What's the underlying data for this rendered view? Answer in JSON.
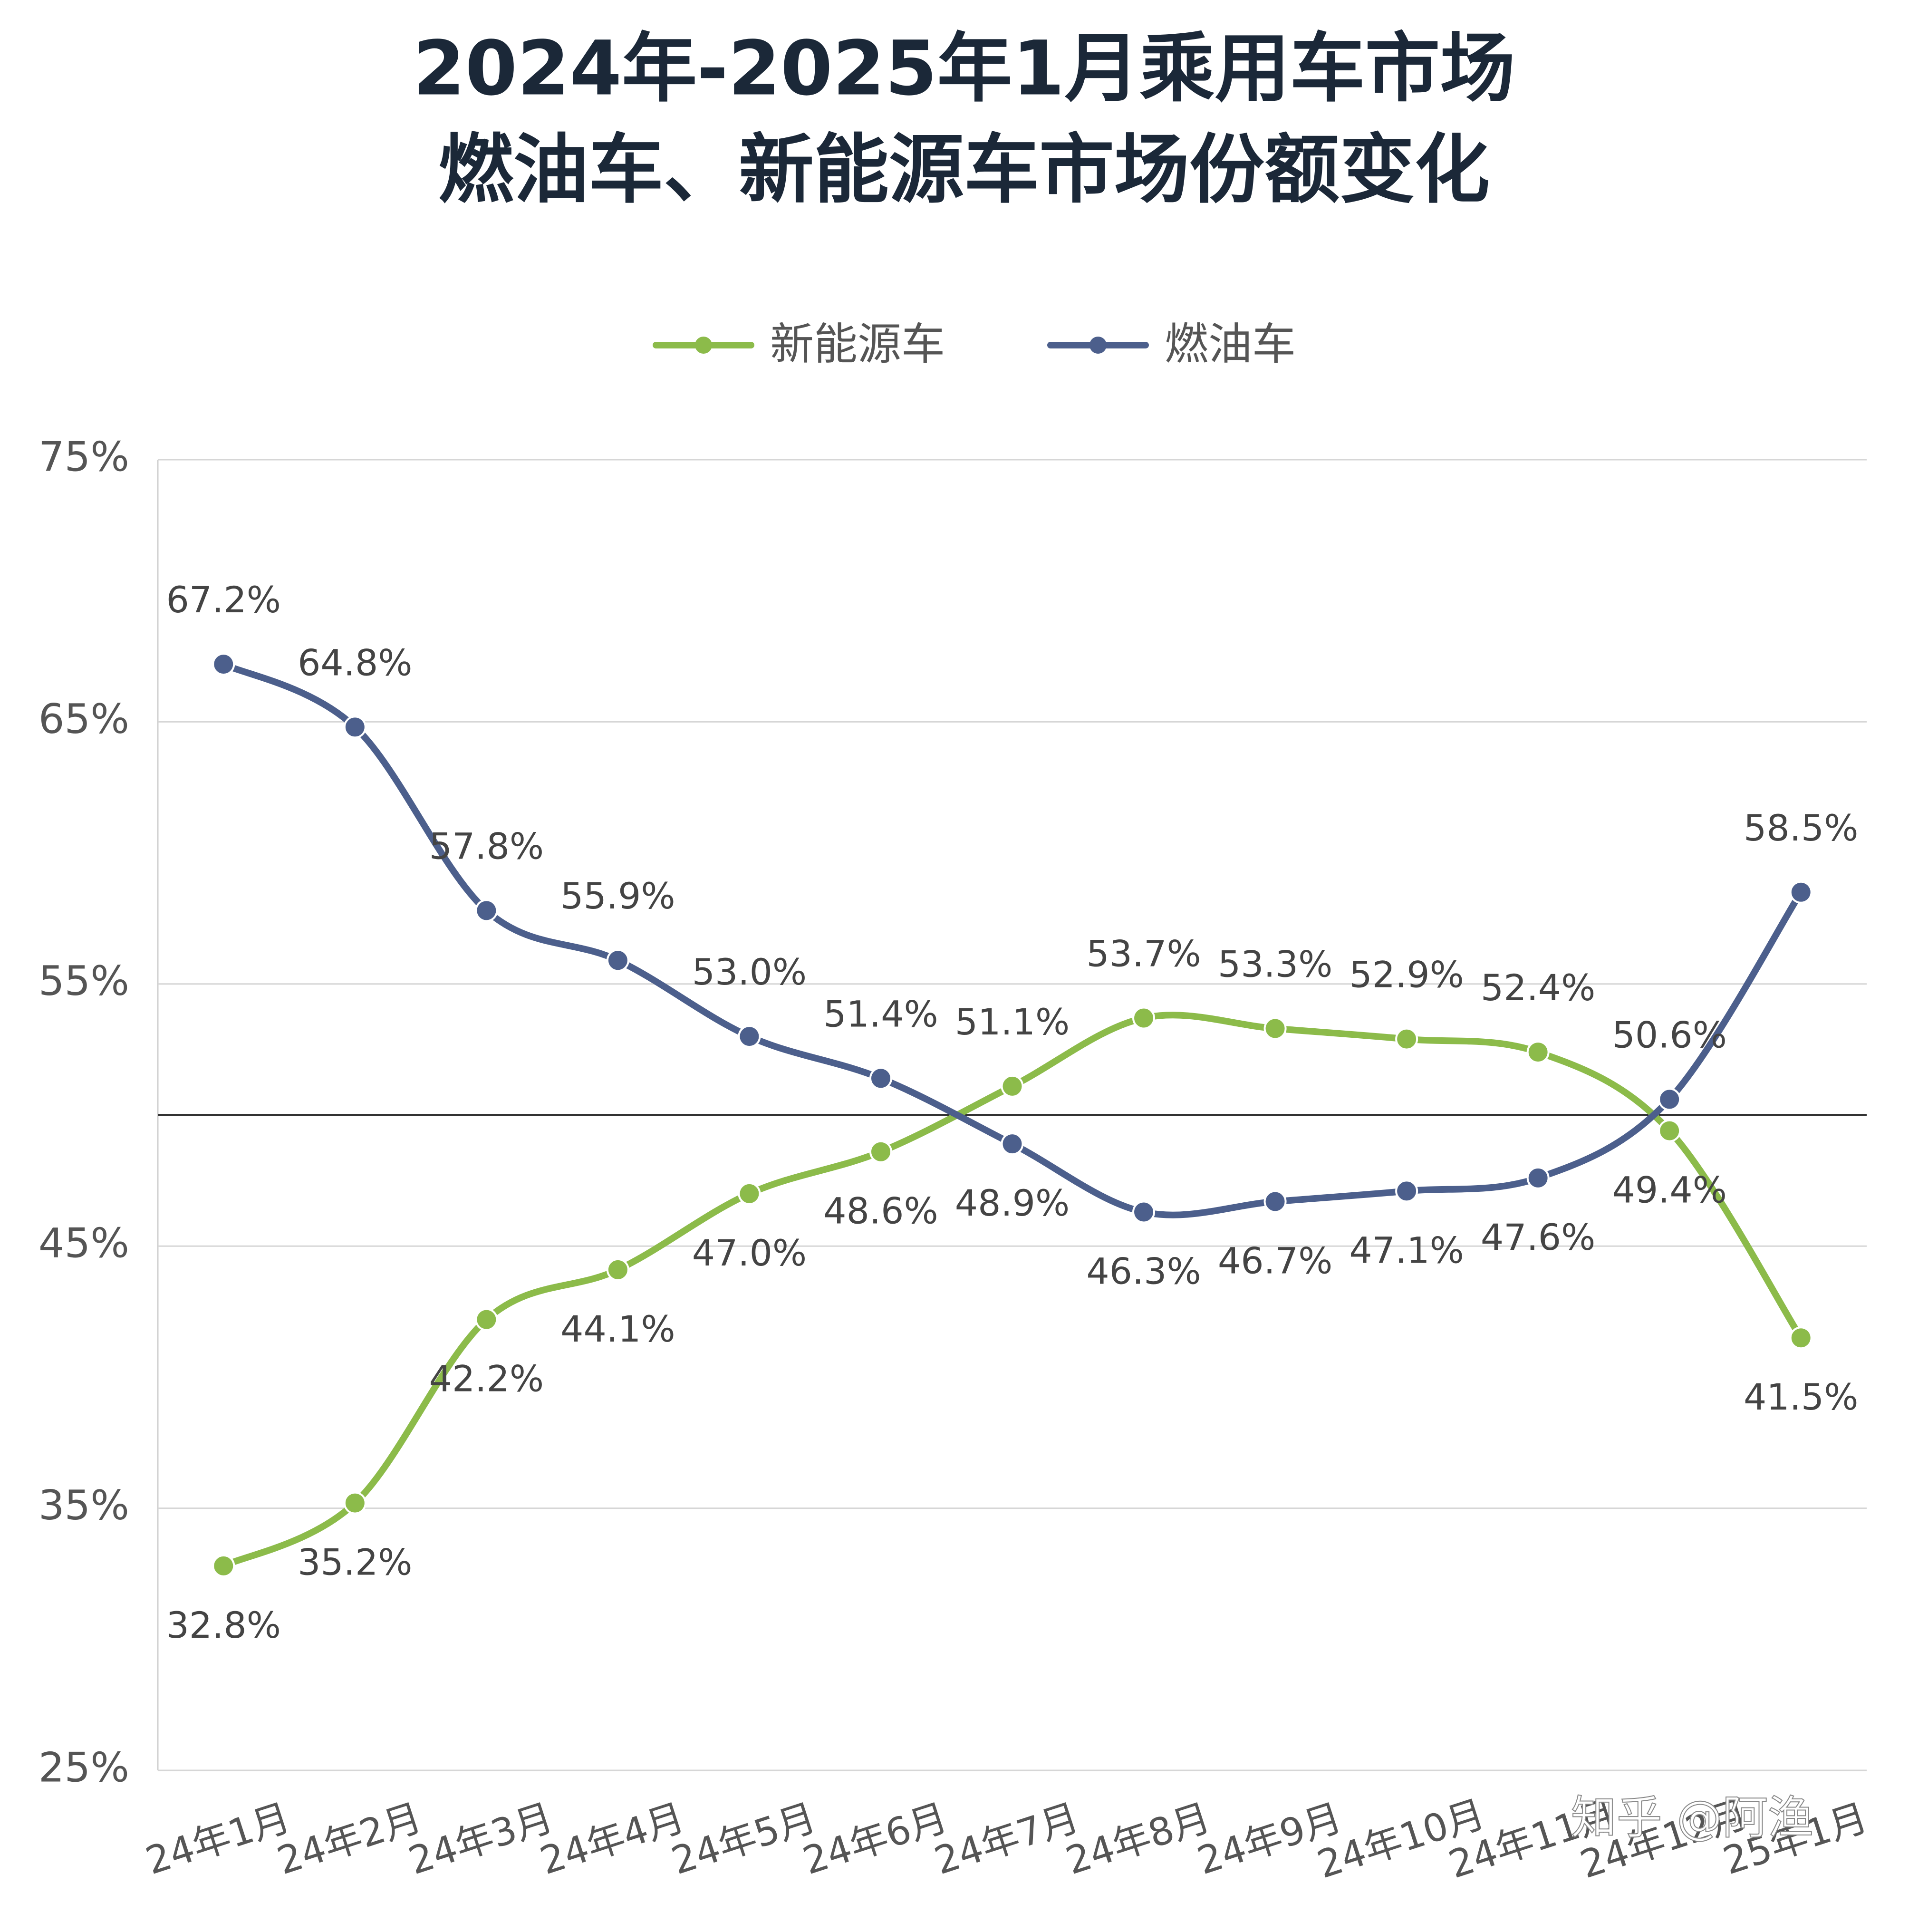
{
  "chart_data": {
    "type": "line",
    "title": "2024年-2025年1月乘用车市场",
    "subtitle": "燃油车、新能源车市场份额变化",
    "categories": [
      "24年1月",
      "24年2月",
      "24年3月",
      "24年4月",
      "24年5月",
      "24年6月",
      "24年7月",
      "24年8月",
      "24年9月",
      "24年10月",
      "24年11月",
      "24年12月",
      "25年1月"
    ],
    "series": [
      {
        "name": "新能源车",
        "color": "#8cbb4a",
        "values": [
          32.8,
          35.2,
          42.2,
          44.1,
          47.0,
          48.6,
          51.1,
          53.7,
          53.3,
          52.9,
          52.4,
          49.4,
          41.5
        ],
        "value_labels": [
          "32.8%",
          "35.2%",
          "42.2%",
          "44.1%",
          "47.0%",
          "48.6%",
          "51.1%",
          "53.7%",
          "53.3%",
          "52.9%",
          "52.4%",
          "49.4%",
          "41.5%"
        ]
      },
      {
        "name": "燃油车",
        "color": "#4c5f8c",
        "values": [
          67.2,
          64.8,
          57.8,
          55.9,
          53.0,
          51.4,
          48.9,
          46.3,
          46.7,
          47.1,
          47.6,
          50.6,
          58.5
        ],
        "value_labels": [
          "67.2%",
          "64.8%",
          "57.8%",
          "55.9%",
          "53.0%",
          "51.4%",
          "48.9%",
          "46.3%",
          "46.7%",
          "47.1%",
          "47.6%",
          "50.6%",
          "58.5%"
        ]
      }
    ],
    "ylim": [
      25,
      75
    ],
    "yticks": [
      {
        "value": 25,
        "label": "25%"
      },
      {
        "value": 35,
        "label": "35%"
      },
      {
        "value": 45,
        "label": "45%"
      },
      {
        "value": 55,
        "label": "55%"
      },
      {
        "value": 65,
        "label": "65%"
      },
      {
        "value": 75,
        "label": "75%"
      }
    ],
    "reference_line": 50,
    "grid": true,
    "legend": "top"
  },
  "watermark": "知乎 @阿渔"
}
